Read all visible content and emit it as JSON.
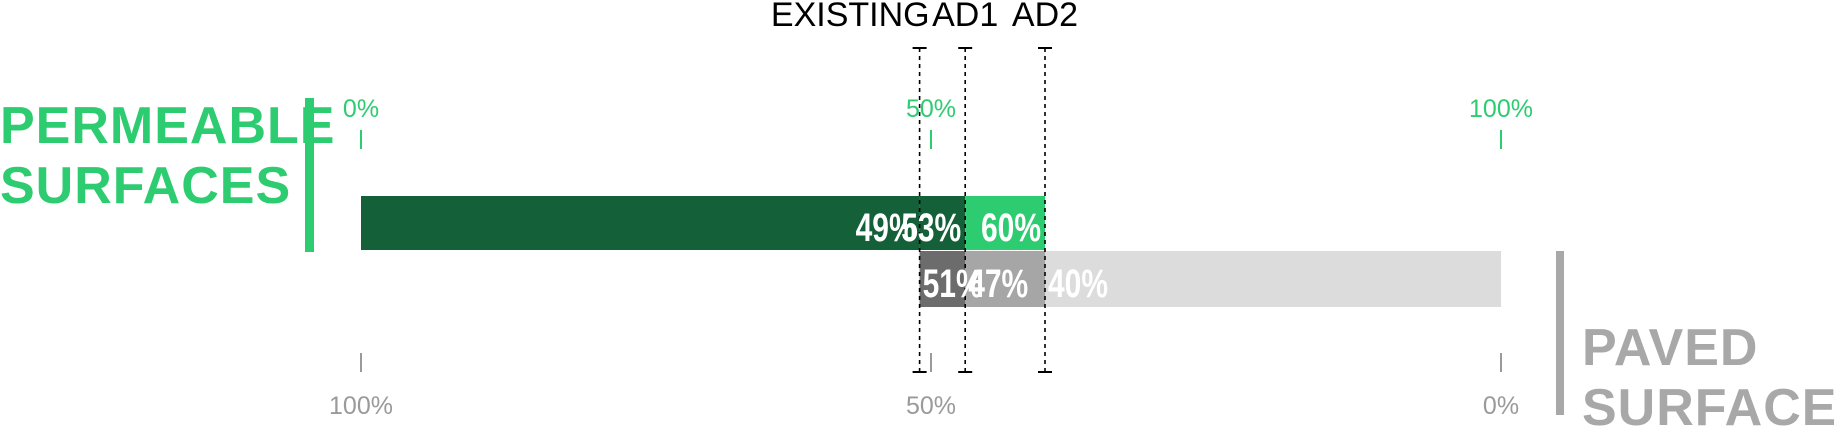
{
  "chart_data": {
    "type": "bar",
    "scenarios": [
      "EXISTING",
      "AD1",
      "AD2"
    ],
    "series": [
      {
        "name": "PERMEABLE SURFACES",
        "values": [
          49,
          53,
          60
        ]
      },
      {
        "name": "PAVED SURFACES",
        "values": [
          51,
          47,
          40
        ]
      }
    ],
    "value_labels": {
      "permeable": [
        "49%",
        "53%",
        "60%"
      ],
      "paved": [
        "51%",
        "47%",
        "40%"
      ]
    },
    "top_axis": {
      "ticks": [
        0,
        50,
        100
      ],
      "labels": [
        "0%",
        "50%",
        "100%"
      ],
      "direction": "left-to-right"
    },
    "bottom_axis": {
      "ticks": [
        100,
        50,
        0
      ],
      "labels": [
        "100%",
        "50%",
        "0%"
      ],
      "direction": "right-to-left"
    },
    "xlim": [
      0,
      100
    ],
    "grid": false
  },
  "labels": {
    "permeable_title": [
      "PERMEABLE",
      "SURFACES"
    ],
    "paved_title": [
      "PAVED",
      "SURFACES"
    ]
  },
  "colors": {
    "permeable_main": "#146039",
    "permeable_accent": "#2ecc71",
    "paved_light": "#dcdcdc",
    "paved_mid": "#a6a6a6",
    "paved_dark": "#6c6c6c",
    "title_gray": "#a8a8a8",
    "tick_gray": "#9a9a9a",
    "marker": "#000000",
    "bar_text": "#ffffff"
  }
}
